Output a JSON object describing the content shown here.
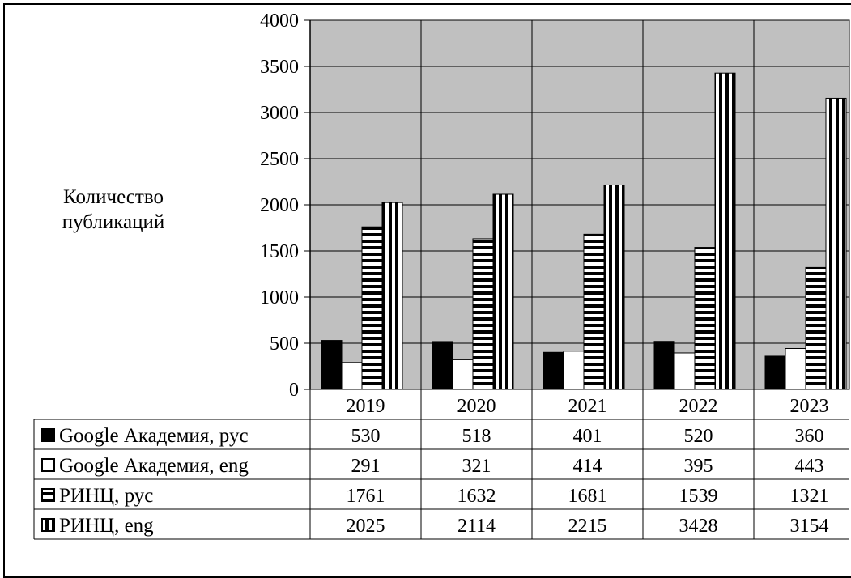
{
  "chart_data": {
    "type": "bar",
    "ylabel": "Количество публикаций",
    "ylim": [
      0,
      4000
    ],
    "yticks": [
      "0",
      "500",
      "1000",
      "1500",
      "2000",
      "2500",
      "3000",
      "3500",
      "4000"
    ],
    "categories": [
      "2019",
      "2020",
      "2021",
      "2022",
      "2023"
    ],
    "grid": true,
    "legend": "data-table-below",
    "plot_background": "#c0c0c0",
    "series": [
      {
        "name": "Google Академия, рус",
        "pattern": "solid-black",
        "values": [
          530,
          518,
          401,
          520,
          360
        ]
      },
      {
        "name": "Google Академия, eng",
        "pattern": "white",
        "values": [
          291,
          321,
          414,
          395,
          443
        ]
      },
      {
        "name": "РИНЦ, рус",
        "pattern": "horizontal-stripes",
        "values": [
          1761,
          1632,
          1681,
          1539,
          1321
        ]
      },
      {
        "name": "РИНЦ, eng",
        "pattern": "vertical-stripes",
        "values": [
          2025,
          2114,
          2215,
          3428,
          3154
        ]
      }
    ],
    "table": {
      "values": [
        [
          "530",
          "518",
          "401",
          "520",
          "360"
        ],
        [
          "291",
          "321",
          "414",
          "395",
          "443"
        ],
        [
          "1761",
          "1632",
          "1681",
          "1539",
          "1321"
        ],
        [
          "2025",
          "2114",
          "2215",
          "3428",
          "3154"
        ]
      ]
    }
  }
}
